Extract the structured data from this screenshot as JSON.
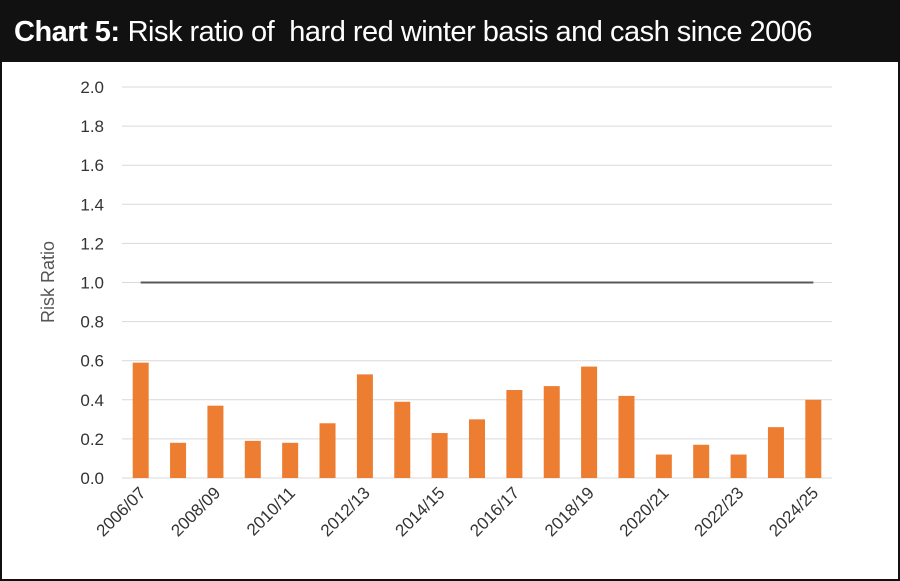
{
  "header": {
    "title_lead": "Chart 5:",
    "title_text": "Risk ratio of  hard red winter basis and cash since 2006"
  },
  "colors": {
    "bar": "#ED7D31",
    "reference_line": "#595959",
    "grid": "#D9D9D9",
    "title_background": "#111111"
  },
  "chart_data": {
    "type": "bar",
    "title": "Chart 5: Risk ratio of  hard red winter basis and cash since 2006",
    "xlabel": "",
    "ylabel": "Risk Ratio",
    "ylim": [
      0,
      2.0
    ],
    "yticks": [
      "0.0",
      "0.2",
      "0.4",
      "0.6",
      "0.8",
      "1.0",
      "1.2",
      "1.4",
      "1.6",
      "1.8",
      "2.0"
    ],
    "grid": true,
    "legend": "none",
    "categories": [
      "2006/07",
      "2007/08",
      "2008/09",
      "2009/10",
      "2010/11",
      "2011/12",
      "2012/13",
      "2013/14",
      "2014/15",
      "2015/16",
      "2016/17",
      "2017/18",
      "2018/19",
      "2019/20",
      "2020/21",
      "2021/22",
      "2022/23",
      "2023/24",
      "2024/25"
    ],
    "xtick_labels": [
      "2006/07",
      "2008/09",
      "2010/11",
      "2012/13",
      "2014/15",
      "2016/17",
      "2018/19",
      "2020/21",
      "2022/23",
      "2024/25"
    ],
    "values": [
      0.59,
      0.18,
      0.37,
      0.19,
      0.18,
      0.28,
      0.53,
      0.39,
      0.23,
      0.3,
      0.45,
      0.47,
      0.57,
      0.42,
      0.12,
      0.17,
      0.12,
      0.26,
      0.4
    ],
    "reference_line": 1.0
  }
}
